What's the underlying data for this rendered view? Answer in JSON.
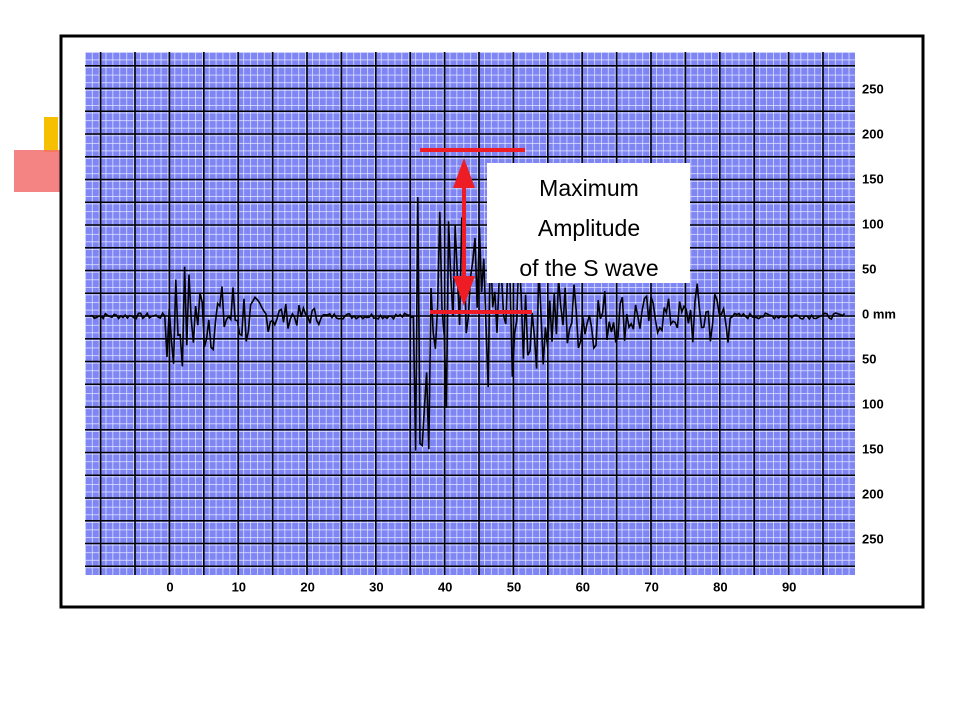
{
  "figure": {
    "annotation": [
      "Maximum",
      "Amplitude",
      "of the S wave"
    ],
    "x_labels": [
      "0",
      "10",
      "20",
      "30",
      "40",
      "50",
      "60",
      "70",
      "80",
      "90"
    ],
    "y_labels": [
      "250",
      "200",
      "150",
      "100",
      "50",
      "0 mm",
      "50",
      "100",
      "150",
      "200",
      "250"
    ]
  }
}
